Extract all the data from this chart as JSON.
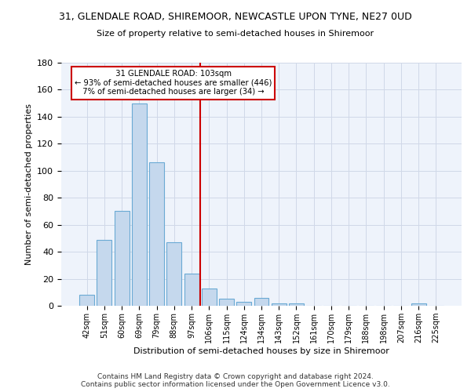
{
  "title": "31, GLENDALE ROAD, SHIREMOOR, NEWCASTLE UPON TYNE, NE27 0UD",
  "subtitle": "Size of property relative to semi-detached houses in Shiremoor",
  "xlabel": "Distribution of semi-detached houses by size in Shiremoor",
  "ylabel": "Number of semi-detached properties",
  "footer": "Contains HM Land Registry data © Crown copyright and database right 2024.\nContains public sector information licensed under the Open Government Licence v3.0.",
  "bar_labels": [
    "42sqm",
    "51sqm",
    "60sqm",
    "69sqm",
    "79sqm",
    "88sqm",
    "97sqm",
    "106sqm",
    "115sqm",
    "124sqm",
    "134sqm",
    "143sqm",
    "152sqm",
    "161sqm",
    "170sqm",
    "179sqm",
    "188sqm",
    "198sqm",
    "207sqm",
    "216sqm",
    "225sqm"
  ],
  "bar_values": [
    8,
    49,
    70,
    150,
    106,
    47,
    24,
    13,
    5,
    3,
    6,
    2,
    2,
    0,
    0,
    0,
    0,
    0,
    0,
    2,
    0
  ],
  "bar_color": "#c5d8ed",
  "bar_edge_color": "#6aaad4",
  "grid_color": "#d0d8e8",
  "bg_color": "#eef3fb",
  "vline_color": "#cc0000",
  "annotation_text": "  31 GLENDALE ROAD: 103sqm  \n← 93% of semi-detached houses are smaller (446)\n  7% of semi-detached houses are larger (34) →  ",
  "annotation_box_color": "#cc0000",
  "ylim": [
    0,
    180
  ],
  "yticks": [
    0,
    20,
    40,
    60,
    80,
    100,
    120,
    140,
    160,
    180
  ],
  "title_fontsize": 9,
  "subtitle_fontsize": 8,
  "footer_fontsize": 6.5
}
